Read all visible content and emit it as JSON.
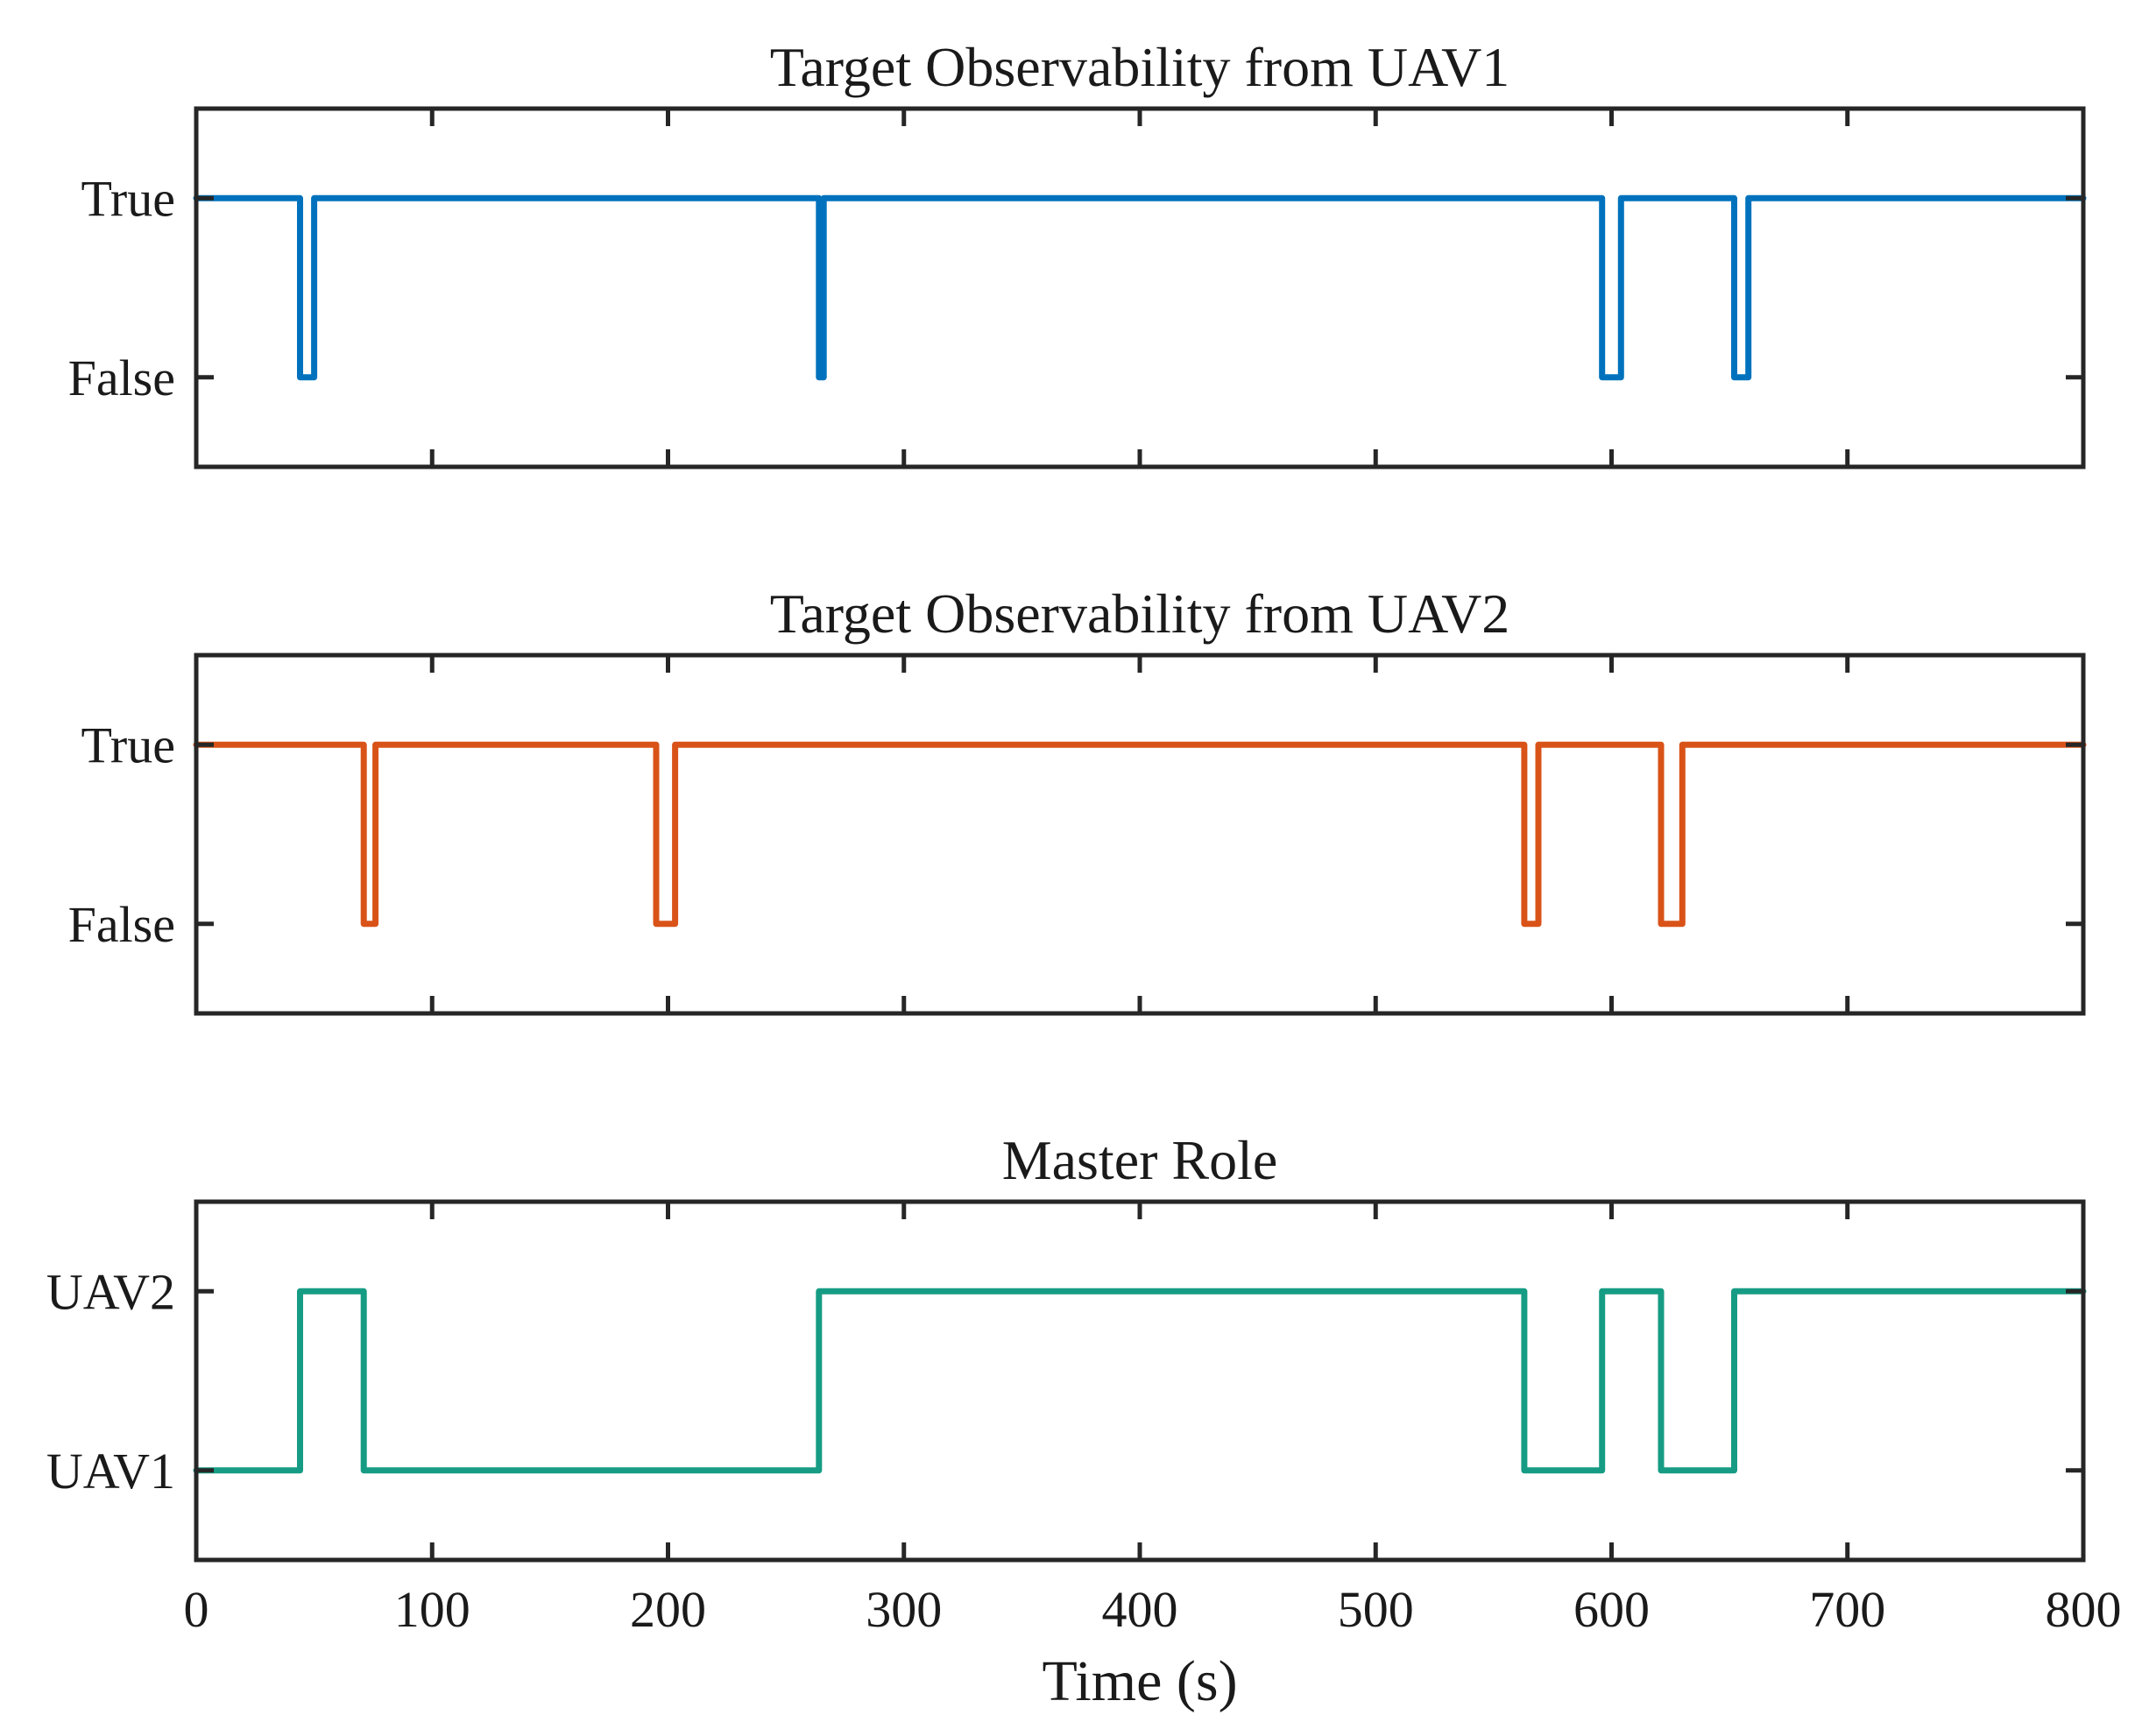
{
  "chart_data": [
    {
      "type": "line",
      "title": "Target Observability from UAV1",
      "color": "#0072BD",
      "xlim": [
        0,
        800
      ],
      "ylim": [
        -0.5,
        1.5
      ],
      "yticks": [
        0,
        1
      ],
      "ytick_labels": [
        "False",
        "True"
      ],
      "x": [
        0,
        44,
        44,
        50,
        50,
        264,
        264,
        266,
        266,
        596,
        596,
        604,
        604,
        652,
        652,
        658,
        658,
        800
      ],
      "y": [
        1,
        1,
        0,
        0,
        1,
        1,
        0,
        0,
        1,
        1,
        0,
        0,
        1,
        1,
        0,
        0,
        1,
        1
      ]
    },
    {
      "type": "line",
      "title": "Target Observability from UAV2",
      "color": "#D95319",
      "xlim": [
        0,
        800
      ],
      "ylim": [
        -0.5,
        1.5
      ],
      "yticks": [
        0,
        1
      ],
      "ytick_labels": [
        "False",
        "True"
      ],
      "x": [
        0,
        71,
        71,
        76,
        76,
        195,
        195,
        203,
        203,
        563,
        563,
        569,
        569,
        621,
        621,
        630,
        630,
        800
      ],
      "y": [
        1,
        1,
        0,
        0,
        1,
        1,
        0,
        0,
        1,
        1,
        0,
        0,
        1,
        1,
        0,
        0,
        1,
        1
      ]
    },
    {
      "type": "line",
      "title": "Master Role",
      "color": "#169C84",
      "xlim": [
        0,
        800
      ],
      "ylim": [
        -0.5,
        1.5
      ],
      "yticks": [
        0,
        1
      ],
      "ytick_labels": [
        "UAV1",
        "UAV2"
      ],
      "x": [
        0,
        44,
        44,
        71,
        71,
        264,
        264,
        563,
        563,
        596,
        596,
        621,
        621,
        652,
        652,
        800
      ],
      "y": [
        0,
        0,
        1,
        1,
        0,
        0,
        1,
        1,
        0,
        0,
        1,
        1,
        0,
        0,
        1,
        1
      ]
    }
  ],
  "x_axis": {
    "label": "Time (s)",
    "ticks": [
      0,
      100,
      200,
      300,
      400,
      500,
      600,
      700,
      800
    ],
    "tick_labels": [
      "0",
      "100",
      "200",
      "300",
      "400",
      "500",
      "600",
      "700",
      "800"
    ]
  }
}
